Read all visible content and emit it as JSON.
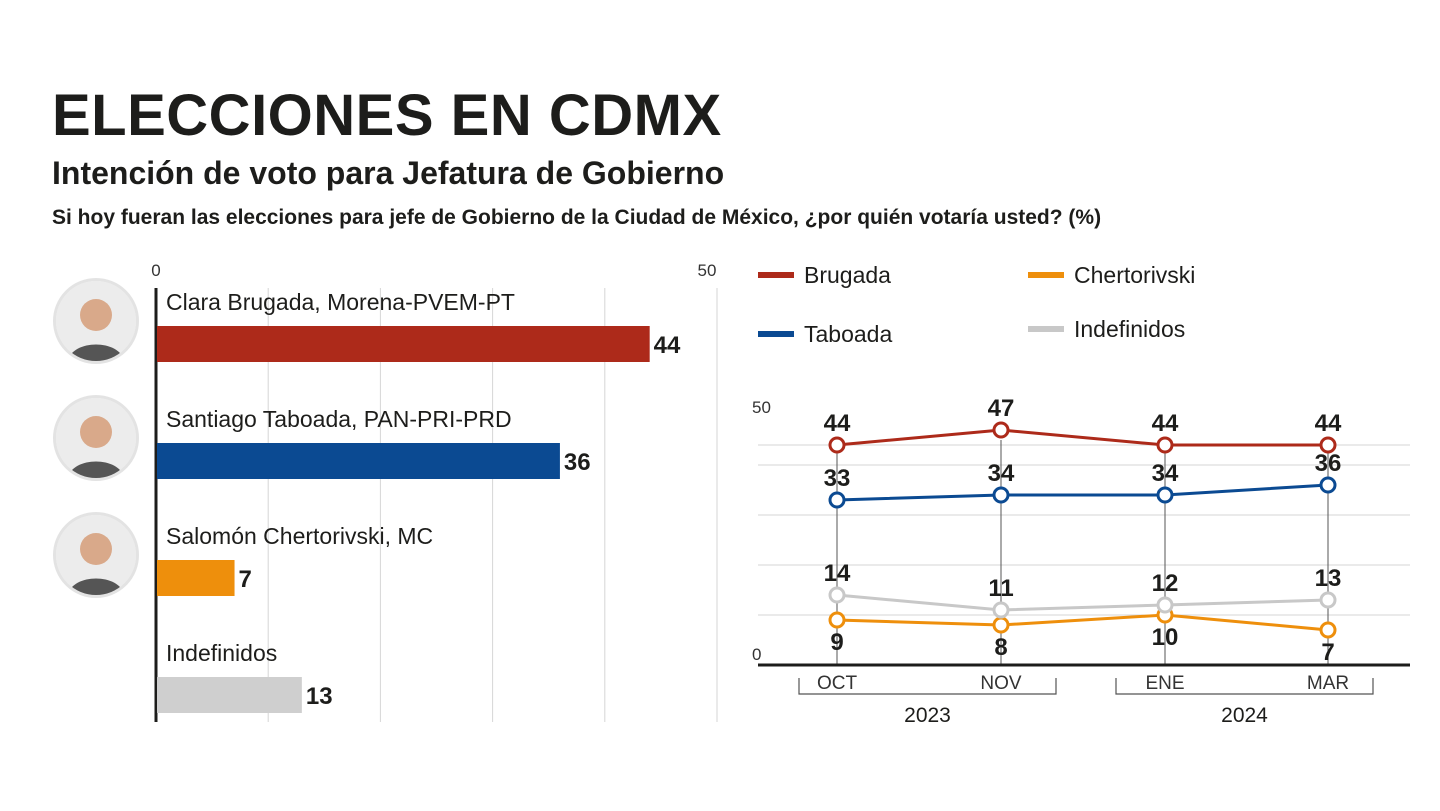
{
  "header": {
    "title": "ELECCIONES EN CDMX",
    "subtitle": "Intención de voto para Jefatura de Gobierno",
    "question": "Si hoy fueran las elecciones para jefe de Gobierno de la Ciudad de México, ¿por quién votaría usted? (%)"
  },
  "chart_data": [
    {
      "type": "bar",
      "orientation": "horizontal",
      "xlim": [
        0,
        50
      ],
      "tick_labels": [
        "0",
        "50"
      ],
      "grid": true,
      "categories": [
        "Clara Brugada, Morena-PVEM-PT",
        "Santiago Taboada, PAN-PRI-PRD",
        "Salomón Chertorivski, MC",
        "Indefinidos"
      ],
      "values": [
        44,
        36,
        7,
        13
      ],
      "colors": [
        "#ad2a1a",
        "#0b4a92",
        "#ee8f0c",
        "#cfcfcf"
      ],
      "avatars": [
        "candidate-photo-icon",
        "candidate-photo-icon",
        "candidate-photo-icon"
      ]
    },
    {
      "type": "line",
      "ylim": [
        0,
        50
      ],
      "tick_labels": [
        "0",
        "50"
      ],
      "grid": true,
      "x": [
        "OCT",
        "NOV",
        "ENE",
        "MAR"
      ],
      "year_groups": [
        {
          "label": "2023",
          "months": [
            "OCT",
            "NOV"
          ]
        },
        {
          "label": "2024",
          "months": [
            "ENE",
            "MAR"
          ]
        }
      ],
      "series": [
        {
          "name": "Brugada",
          "color": "#ad2a1a",
          "values": [
            44,
            47,
            44,
            44
          ]
        },
        {
          "name": "Taboada",
          "color": "#0b4a92",
          "values": [
            33,
            34,
            34,
            36
          ]
        },
        {
          "name": "Chertorivski",
          "color": "#ee8f0c",
          "values": [
            9,
            8,
            10,
            7
          ]
        },
        {
          "name": "Indefinidos",
          "color": "#c8c8c8",
          "values": [
            14,
            11,
            12,
            13
          ]
        }
      ]
    }
  ]
}
